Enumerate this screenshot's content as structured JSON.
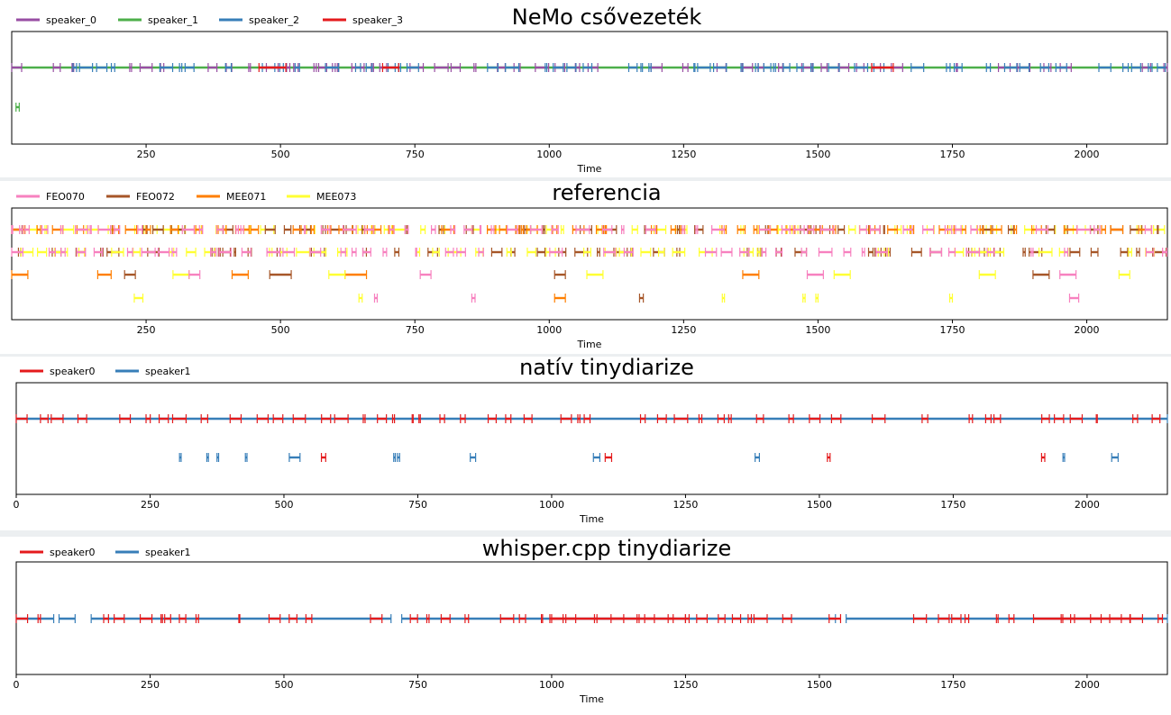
{
  "colors": {
    "speaker_0": "#984ea3",
    "speaker_1": "#4daf4a",
    "speaker_2": "#377eb8",
    "speaker_3": "#e41a1c",
    "FEO070": "#f781bf",
    "FEO072": "#a65628",
    "MEE071": "#ff7f00",
    "MEE073": "#ffff33",
    "speaker0": "#e41a1c",
    "speaker1": "#377eb8"
  },
  "chart_data": [
    {
      "type": "timeline",
      "title": "NeMo csővezeték",
      "xlabel": "Time",
      "xlim": [
        0,
        2150
      ],
      "xticks": [
        "250",
        "500",
        "750",
        "1000",
        "1250",
        "1500",
        "1750",
        "2000"
      ],
      "legend": [
        "speaker_0",
        "speaker_1",
        "speaker_2",
        "speaker_3"
      ],
      "legend_placement": "top-left",
      "rows": 2,
      "series": [
        {
          "name": "speaker_1",
          "segments": [
            [
              0,
              2150
            ]
          ],
          "row": 0,
          "dense": false
        },
        {
          "name": "speaker_0",
          "segments": [
            [
              0,
              2150
            ]
          ],
          "row": 0,
          "dense": true
        },
        {
          "name": "speaker_2",
          "segments": [
            [
              0,
              2150
            ]
          ],
          "row": 0,
          "dense": true
        },
        {
          "name": "speaker_3",
          "segments": [
            [
              460,
              510
            ],
            [
              690,
              720
            ],
            [
              1600,
              1640
            ]
          ],
          "row": 0,
          "dense": false
        },
        {
          "name": "speaker_1",
          "segments": [
            [
              8,
              14
            ]
          ],
          "row": 1,
          "dense": false
        }
      ]
    },
    {
      "type": "timeline",
      "title": "referencia",
      "xlabel": "Time",
      "xlim": [
        0,
        2150
      ],
      "xticks": [
        "250",
        "500",
        "750",
        "1000",
        "1250",
        "1500",
        "1750",
        "2000"
      ],
      "legend": [
        "FEO070",
        "FEO072",
        "MEE071",
        "MEE073"
      ],
      "legend_placement": "top-left",
      "rows": 4,
      "series": [
        {
          "name": "MEE073",
          "segments": [
            [
              0,
              2150
            ]
          ],
          "row": 0,
          "dense": true
        },
        {
          "name": "FEO072",
          "segments": [
            [
              0,
              2150
            ]
          ],
          "row": 0,
          "dense": true
        },
        {
          "name": "MEE071",
          "segments": [
            [
              0,
              2150
            ]
          ],
          "row": 0,
          "dense": true
        },
        {
          "name": "FEO070",
          "segments": [
            [
              0,
              2150
            ]
          ],
          "row": 0,
          "dense": true
        },
        {
          "name": "FEO072",
          "segments": [
            [
              0,
              2150
            ]
          ],
          "row": 1,
          "dense": true
        },
        {
          "name": "MEE073",
          "segments": [
            [
              0,
              2150
            ]
          ],
          "row": 1,
          "dense": true
        },
        {
          "name": "FEO070",
          "segments": [
            [
              0,
              2150
            ]
          ],
          "row": 1,
          "dense": true
        },
        {
          "name": "MEE071",
          "segments": [
            [
              0,
              30
            ],
            [
              160,
              185
            ],
            [
              410,
              440
            ],
            [
              620,
              660
            ],
            [
              1360,
              1390
            ]
          ],
          "row": 2,
          "dense": false
        },
        {
          "name": "FEO072",
          "segments": [
            [
              210,
              230
            ],
            [
              480,
              520
            ],
            [
              1010,
              1030
            ],
            [
              1900,
              1930
            ]
          ],
          "row": 2,
          "dense": false
        },
        {
          "name": "MEE073",
          "segments": [
            [
              300,
              330
            ],
            [
              590,
              620
            ],
            [
              1070,
              1100
            ],
            [
              1530,
              1560
            ],
            [
              1800,
              1830
            ],
            [
              2060,
              2080
            ]
          ],
          "row": 2,
          "dense": false
        },
        {
          "name": "FEO070",
          "segments": [
            [
              330,
              350
            ],
            [
              760,
              780
            ],
            [
              1480,
              1510
            ],
            [
              1950,
              1980
            ]
          ],
          "row": 2,
          "dense": false
        },
        {
          "name": "MEE073",
          "segments": [
            [
              228,
              244
            ],
            [
              646,
              652
            ],
            [
              1322,
              1326
            ],
            [
              1472,
              1476
            ],
            [
              1496,
              1500
            ],
            [
              1745,
              1750
            ]
          ],
          "row": 3,
          "dense": false
        },
        {
          "name": "FEO070",
          "segments": [
            [
              675,
              680
            ],
            [
              856,
              862
            ],
            [
              1968,
              1985
            ]
          ],
          "row": 3,
          "dense": false
        },
        {
          "name": "MEE071",
          "segments": [
            [
              1010,
              1030
            ]
          ],
          "row": 3,
          "dense": false
        },
        {
          "name": "FEO072",
          "segments": [
            [
              1168,
              1175
            ]
          ],
          "row": 3,
          "dense": false
        }
      ]
    },
    {
      "type": "timeline",
      "title": "natív tinydiarize",
      "xlabel": "Time",
      "xlim": [
        0,
        2150
      ],
      "xticks": [
        "0",
        "250",
        "500",
        "750",
        "1000",
        "1250",
        "1500",
        "1750",
        "2000"
      ],
      "legend": [
        "speaker0",
        "speaker1"
      ],
      "legend_placement": "top-left",
      "rows": 2,
      "series": [
        {
          "name": "speaker1",
          "segments": [
            [
              0,
              2150
            ]
          ],
          "row": 0,
          "dense": false
        },
        {
          "name": "speaker0",
          "segments": [
            [
              0,
              2150
            ]
          ],
          "row": 0,
          "dense": true
        },
        {
          "name": "speaker1",
          "segments": [
            [
              305,
              308
            ],
            [
              356,
              359
            ],
            [
              375,
              378
            ],
            [
              428,
              431
            ],
            [
              510,
              530
            ],
            [
              705,
              708
            ],
            [
              712,
              716
            ],
            [
              848,
              858
            ],
            [
              1078,
              1090
            ],
            [
              1380,
              1388
            ],
            [
              1955,
              1958
            ],
            [
              2046,
              2058
            ]
          ],
          "row": 1,
          "dense": false
        },
        {
          "name": "speaker0",
          "segments": [
            [
              570,
              578
            ],
            [
              1100,
              1112
            ],
            [
              1515,
              1520
            ],
            [
              1915,
              1921
            ]
          ],
          "row": 1,
          "dense": false
        }
      ]
    },
    {
      "type": "timeline",
      "title": "whisper.cpp tinydiarize",
      "xlabel": "Time",
      "xlim": [
        0,
        2150
      ],
      "xticks": [
        "0",
        "250",
        "500",
        "750",
        "1000",
        "1250",
        "1500",
        "1750",
        "2000"
      ],
      "legend": [
        "speaker0",
        "speaker1"
      ],
      "legend_placement": "top-left",
      "rows": 1,
      "series": [
        {
          "name": "speaker1",
          "segments": [
            [
              0,
              70
            ],
            [
              80,
              110
            ],
            [
              140,
              700
            ],
            [
              720,
              1530
            ],
            [
              1550,
              2150
            ]
          ],
          "row": 0,
          "dense": false
        },
        {
          "name": "speaker0",
          "segments": [
            [
              0,
              2150
            ]
          ],
          "row": 0,
          "dense": true
        },
        {
          "name": "speaker0",
          "segments": [
            [
              1000,
              1250
            ],
            [
              1900,
              2080
            ]
          ],
          "row": 0,
          "dense": false
        }
      ]
    }
  ]
}
